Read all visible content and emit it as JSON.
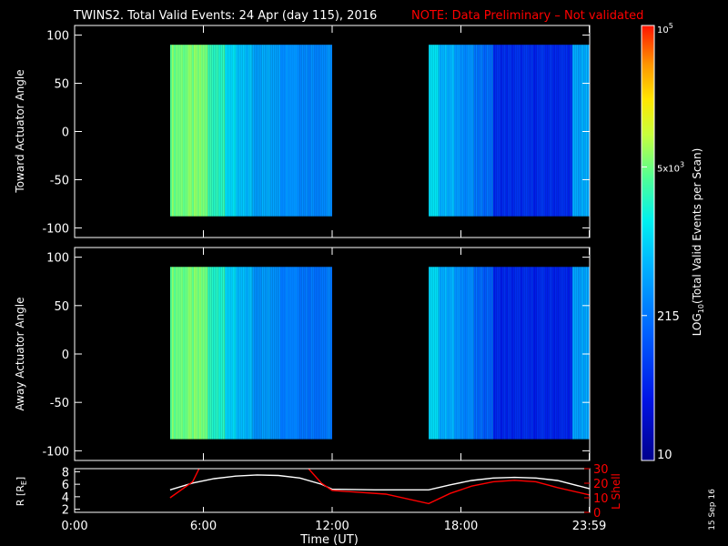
{
  "header": {
    "title": "TWINS2. Total Valid Events: 24 Apr (day 115), 2016",
    "note": "NOTE: Data Preliminary – Not validated",
    "note_color": "#ff0000"
  },
  "side_date": "15 Sep 16",
  "chart_data": [
    {
      "type": "heatmap",
      "panel": "toward",
      "ylabel": "Toward Actuator Angle",
      "ylim": [
        -110,
        110
      ],
      "yticks": [
        100,
        50,
        0,
        -50,
        -100
      ],
      "xlim_hours": [
        0,
        24
      ],
      "data_range_angle": [
        -88,
        90
      ],
      "active_intervals_hours": [
        [
          4.45,
          12.0
        ],
        [
          16.5,
          23.98
        ]
      ],
      "time_profile": [
        {
          "t": [
            4.45,
            6.2
          ],
          "log_events": 3.72
        },
        {
          "t": [
            6.2,
            7.0
          ],
          "log_events": 3.45
        },
        {
          "t": [
            7.0,
            7.5
          ],
          "log_events": 3.05
        },
        {
          "t": [
            7.5,
            8.3
          ],
          "log_events": 2.85
        },
        {
          "t": [
            8.3,
            9.5
          ],
          "log_events": 2.72
        },
        {
          "t": [
            9.5,
            10.5
          ],
          "log_events": 2.58
        },
        {
          "t": [
            10.5,
            12.0
          ],
          "log_events": 2.5
        },
        {
          "t": [
            16.5,
            17.0
          ],
          "log_events": 3.05
        },
        {
          "t": [
            17.0,
            17.7
          ],
          "log_events": 2.8
        },
        {
          "t": [
            17.7,
            18.6
          ],
          "log_events": 2.55
        },
        {
          "t": [
            18.6,
            19.5
          ],
          "log_events": 2.3
        },
        {
          "t": [
            19.5,
            23.2
          ],
          "log_events": 1.75
        },
        {
          "t": [
            23.2,
            23.98
          ],
          "log_events": 2.7
        }
      ]
    },
    {
      "type": "heatmap",
      "panel": "away",
      "ylabel": "Away Actuator Angle",
      "ylim": [
        -110,
        110
      ],
      "yticks": [
        100,
        50,
        0,
        -50,
        -100
      ],
      "xlim_hours": [
        0,
        24
      ],
      "data_range_angle": [
        -88,
        90
      ],
      "active_intervals_hours": [
        [
          4.45,
          12.0
        ],
        [
          16.5,
          23.98
        ]
      ],
      "time_profile": [
        {
          "t": [
            4.45,
            6.2
          ],
          "log_events": 3.7
        },
        {
          "t": [
            6.2,
            7.0
          ],
          "log_events": 3.4
        },
        {
          "t": [
            7.0,
            7.5
          ],
          "log_events": 3.0
        },
        {
          "t": [
            7.5,
            8.3
          ],
          "log_events": 2.8
        },
        {
          "t": [
            8.3,
            9.5
          ],
          "log_events": 2.6
        },
        {
          "t": [
            9.5,
            10.5
          ],
          "log_events": 2.45
        },
        {
          "t": [
            10.5,
            12.0
          ],
          "log_events": 2.35
        },
        {
          "t": [
            16.5,
            17.0
          ],
          "log_events": 3.0
        },
        {
          "t": [
            17.0,
            17.7
          ],
          "log_events": 2.75
        },
        {
          "t": [
            17.7,
            18.6
          ],
          "log_events": 2.5
        },
        {
          "t": [
            18.6,
            19.5
          ],
          "log_events": 2.2
        },
        {
          "t": [
            19.5,
            23.2
          ],
          "log_events": 1.7
        },
        {
          "t": [
            23.2,
            23.98
          ],
          "log_events": 2.65
        }
      ]
    },
    {
      "type": "line",
      "panel": "orbit",
      "ylabel_left": "R [R",
      "ylabel_left_sub": "E",
      "ylabel_left_close": "]",
      "ylim_left": [
        1.5,
        8.5
      ],
      "yticks_left": [
        8,
        6,
        4,
        2
      ],
      "ylabel_right": "L Shell",
      "ylim_right": [
        0,
        30
      ],
      "yticks_right": [
        30,
        20,
        10,
        0
      ],
      "series": [
        {
          "axis": "left",
          "color": "#ffffff",
          "x": [
            4.45,
            5.5,
            6.5,
            7.5,
            8.5,
            9.5,
            10.5,
            11.5,
            12.0,
            14.0,
            16.5,
            17.5,
            18.5,
            19.5,
            20.5,
            21.5,
            22.5,
            23.98
          ],
          "y": [
            5.1,
            6.2,
            6.9,
            7.3,
            7.5,
            7.4,
            7.0,
            6.0,
            5.2,
            5.1,
            5.1,
            5.9,
            6.6,
            7.0,
            7.1,
            7.0,
            6.6,
            5.3
          ]
        },
        {
          "axis": "right",
          "color": "#ff0000",
          "x": [
            4.45,
            5.5,
            5.8,
            null,
            10.9,
            11.5,
            12.0,
            14.5,
            16.5,
            17.5,
            18.5,
            19.5,
            20.5,
            21.5,
            22.5,
            23.98
          ],
          "y": [
            10,
            21,
            30,
            null,
            30,
            20,
            15,
            12.5,
            6,
            13,
            18,
            21,
            22,
            21,
            17,
            12
          ]
        }
      ]
    }
  ],
  "xaxis": {
    "label": "Time (UT)",
    "ticks": [
      {
        "hour": 0,
        "label": "0:00"
      },
      {
        "hour": 6,
        "label": "6:00"
      },
      {
        "hour": 12,
        "label": "12:00"
      },
      {
        "hour": 18,
        "label": "18:00"
      },
      {
        "hour": 23.98,
        "label": "23:59"
      }
    ]
  },
  "colorbar": {
    "label": "LOG",
    "label_sub": "10",
    "label_rest": "(Total Valid Events per Scan)",
    "min": 10,
    "max": 100000,
    "ticks": [
      {
        "value": 10,
        "label": "10"
      },
      {
        "value": 215,
        "label": "215"
      },
      {
        "value": 5000,
        "label": "5x10",
        "sup": "3"
      },
      {
        "value": 100000,
        "label": "10",
        "sup": "5"
      }
    ]
  }
}
